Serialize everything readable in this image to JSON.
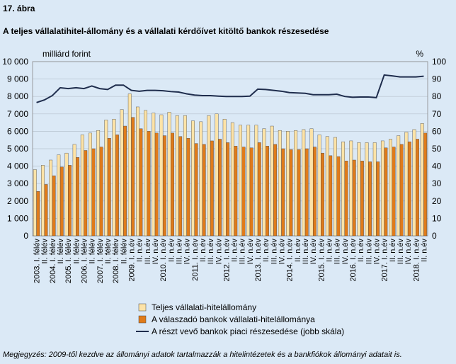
{
  "header": "17. ábra",
  "chart_data": {
    "type": "bar-line",
    "title": "A teljes vállalatihitel-állomány és a vállalati kérdőívet kitöltő bankok részesedése",
    "ylabel": "milliárd forint",
    "y2label": "%",
    "categories": [
      "2003. I. félév",
      "II. félév",
      "2004. I. félév",
      "II. félév",
      "2005. I. félév",
      "II. félév",
      "2006. I. félév",
      "II. félév",
      "2007. I. félév",
      "II. félév",
      "2008. I. félév",
      "II. félév",
      "2009. I. n.év",
      "II. n.év",
      "III. n.év",
      "IV. n.év",
      "2010. I. n.év",
      "II. n.év",
      "III. n.év",
      "IV. n.év",
      "2011. I. n.év",
      "II. n.év",
      "III. n.év",
      "IV. n.év",
      "2012. I. n.év",
      "II. n.év",
      "III. n.év",
      "IV. n.év",
      "2013. I. n.év",
      "II. n.év",
      "III. n.év",
      "IV. n.év",
      "2014. I. n.év",
      "II. n.év",
      "III. n.év",
      "IV. n.év",
      "2015. I. n.év",
      "II. n.év",
      "III. n.év",
      "IV. n.év",
      "2016. I. n.év",
      "II. n.év",
      "III. n.év",
      "IV. n.év",
      "2017. I. n.év",
      "II. n.év",
      "III. n.év",
      "IV. n.év",
      "2018. I. n.év",
      "II. n.év"
    ],
    "series": [
      {
        "name": "Teljes vállalati-hitelállomány",
        "color": "#fde3a7",
        "kind": "bar",
        "values": [
          3800,
          4050,
          4350,
          4650,
          4750,
          5250,
          5800,
          5900,
          6050,
          6650,
          6700,
          7250,
          8150,
          7400,
          7200,
          7050,
          6950,
          7100,
          6900,
          6900,
          6600,
          6550,
          6900,
          7000,
          6700,
          6500,
          6350,
          6350,
          6350,
          6150,
          6300,
          6050,
          6000,
          6050,
          6100,
          6150,
          5800,
          5700,
          5650,
          5400,
          5450,
          5350,
          5350,
          5350,
          5450,
          5550,
          5750,
          5950,
          6100,
          6450
        ]
      },
      {
        "name": "A válaszadó bankok vállalati-hitelállománya",
        "color": "#e07b1a",
        "kind": "bar",
        "values": [
          2550,
          2950,
          3450,
          3950,
          4050,
          4500,
          4900,
          5000,
          5100,
          5600,
          5800,
          6300,
          6800,
          6150,
          6000,
          5900,
          5750,
          5900,
          5700,
          5600,
          5300,
          5250,
          5450,
          5550,
          5350,
          5150,
          5100,
          5050,
          5350,
          5150,
          5250,
          5000,
          4950,
          4950,
          5000,
          5100,
          4750,
          4600,
          4550,
          4300,
          4350,
          4300,
          4250,
          4250,
          5050,
          5100,
          5250,
          5400,
          5550,
          5900
        ]
      },
      {
        "name": "A részt vevő bankok piaci részesedése (jobb skála)",
        "color": "#1f2d4d",
        "kind": "line",
        "axis": "y2",
        "values": [
          76.5,
          78,
          80.5,
          85,
          84.5,
          85,
          84.5,
          86,
          84.5,
          84,
          86.5,
          86.5,
          83.5,
          83,
          83.5,
          83.5,
          83.3,
          82.8,
          82.5,
          81.5,
          80.8,
          80.5,
          80.5,
          80.2,
          80,
          80,
          80,
          80.2,
          84.2,
          84,
          83.5,
          83,
          82.2,
          82,
          81.8,
          81,
          81,
          81,
          81.3,
          80,
          79.5,
          79.7,
          79.7,
          79.3,
          92.3,
          91.8,
          91.2,
          91.2,
          91.2,
          91.6
        ]
      }
    ],
    "ylim": [
      0,
      10000
    ],
    "yticks": [
      0,
      {
        "value": 1000,
        "label": "1 000"
      },
      {
        "value": 2000,
        "label": "2 000"
      },
      {
        "value": 3000,
        "label": "3 000"
      },
      {
        "value": 4000,
        "label": "4 000"
      },
      {
        "value": 5000,
        "label": "5 000"
      },
      {
        "value": 6000,
        "label": "6 000"
      },
      {
        "value": 7000,
        "label": "7 000"
      },
      {
        "value": 8000,
        "label": "8 000"
      },
      {
        "value": 9000,
        "label": "9 000"
      },
      {
        "value": 10000,
        "label": "10 000"
      }
    ],
    "y2lim": [
      0,
      100
    ],
    "y2ticks": [
      0,
      10,
      20,
      30,
      40,
      50,
      60,
      70,
      80,
      90,
      100
    ],
    "grid": true,
    "note": "Megjegyzés: 2009-től kezdve az állományi adatok tartalmazzák a hitelintézetek és a bankfiókok állományi adatait is."
  }
}
